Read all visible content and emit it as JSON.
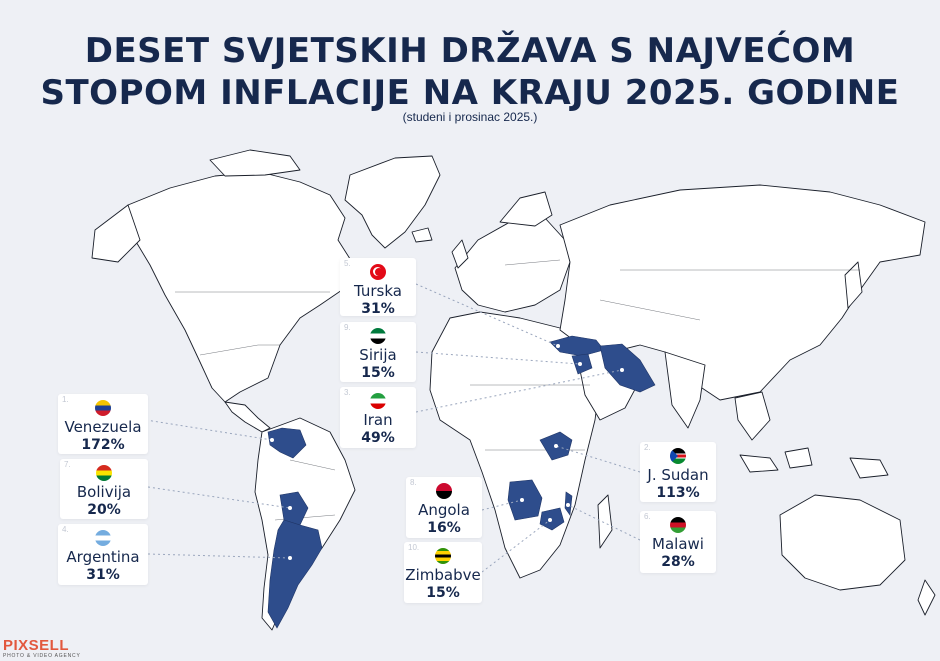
{
  "title": {
    "line1": "DESET SVJETSKIH DRŽAVA S NAJVEĆOM",
    "line2": "STOPOM INFLACIJE NA KRAJU 2025. GODINE"
  },
  "subtitle": "(studeni i prosinac 2025.)",
  "colors": {
    "highlight": "#2e4d8c",
    "land": "#ffffff",
    "border": "#1a1f2a",
    "title": "#16284d"
  },
  "countries": [
    {
      "rank": "1.",
      "name": "Venezuela",
      "value": "172%",
      "flag": "venezuela-flag-icon"
    },
    {
      "rank": "2.",
      "name": "J. Sudan",
      "value": "113%",
      "flag": "south-sudan-flag-icon"
    },
    {
      "rank": "3.",
      "name": "Iran",
      "value": "49%",
      "flag": "iran-flag-icon"
    },
    {
      "rank": "4.",
      "name": "Argentina",
      "value": "31%",
      "flag": "argentina-flag-icon"
    },
    {
      "rank": "5.",
      "name": "Turska",
      "value": "31%",
      "flag": "turkey-flag-icon"
    },
    {
      "rank": "6.",
      "name": "Malawi",
      "value": "28%",
      "flag": "malawi-flag-icon"
    },
    {
      "rank": "7.",
      "name": "Bolivija",
      "value": "20%",
      "flag": "bolivia-flag-icon"
    },
    {
      "rank": "8.",
      "name": "Angola",
      "value": "16%",
      "flag": "angola-flag-icon"
    },
    {
      "rank": "9.",
      "name": "Sirija",
      "value": "15%",
      "flag": "syria-flag-icon"
    },
    {
      "rank": "10.",
      "name": "Zimbabve",
      "value": "15%",
      "flag": "zimbabwe-flag-icon"
    }
  ],
  "logo": {
    "name": "PIXSELL",
    "tagline": "PHOTO & VIDEO AGENCY"
  }
}
